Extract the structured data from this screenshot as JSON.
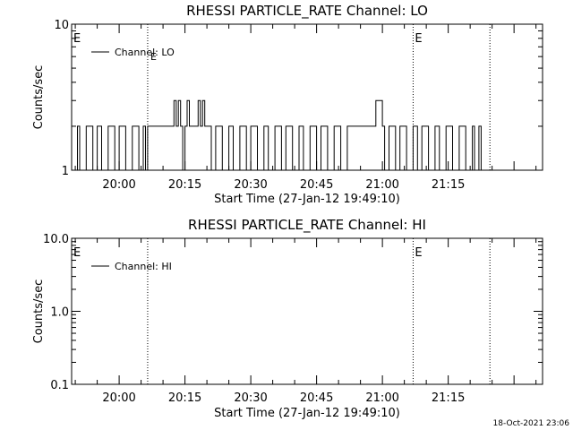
{
  "timestamp": "18-Oct-2021 23:06",
  "chart_data": [
    {
      "type": "line",
      "title": "RHESSI PARTICLE_RATE Channel: LO",
      "xlabel": "Start Time (27-Jan-12 19:49:10)",
      "ylabel": "Counts/sec",
      "yscale": "log",
      "ylim": [
        1,
        10
      ],
      "ytick_labels": [
        "1",
        "10"
      ],
      "xlim": [
        "19:49:10",
        "21:36:30"
      ],
      "xtick_labels": [
        "20:00",
        "20:15",
        "20:30",
        "20:45",
        "21:00",
        "21:15"
      ],
      "event_markers": [
        {
          "time": "20:06:30",
          "label": "E"
        },
        {
          "time": "21:07:00",
          "label": ""
        },
        {
          "time": "21:24:30",
          "label": ""
        }
      ],
      "edge_labels": [
        "E",
        "E"
      ],
      "legend": {
        "label": "Channel: LO",
        "placement": "top-left"
      },
      "series": [
        {
          "name": "Channel: LO",
          "step": true,
          "x": [
            "19:49:10",
            "19:50:30",
            "19:51:00",
            "19:52:30",
            "19:54:00",
            "19:55:00",
            "19:56:00",
            "19:57:30",
            "19:59:00",
            "20:00:00",
            "20:01:30",
            "20:03:00",
            "20:04:30",
            "20:05:30",
            "20:06:00",
            "20:06:30",
            "20:12:00",
            "20:12:30",
            "20:13:00",
            "20:13:30",
            "20:14:00",
            "20:14:30",
            "20:15:00",
            "20:15:30",
            "20:16:00",
            "20:17:00",
            "20:18:00",
            "20:18:30",
            "20:19:00",
            "20:19:30",
            "20:21:00",
            "20:22:00",
            "20:23:30",
            "20:25:00",
            "20:26:00",
            "20:27:30",
            "20:29:00",
            "20:30:00",
            "20:31:30",
            "20:33:00",
            "20:34:00",
            "20:35:30",
            "20:37:00",
            "20:38:00",
            "20:39:30",
            "20:41:00",
            "20:42:00",
            "20:43:30",
            "20:45:00",
            "20:46:00",
            "20:47:30",
            "20:49:00",
            "20:50:30",
            "20:52:00",
            "20:57:00",
            "20:58:30",
            "21:00:00",
            "21:00:30",
            "21:01:30",
            "21:03:00",
            "21:04:00",
            "21:05:30",
            "21:07:00",
            "21:08:00",
            "21:09:00",
            "21:10:30",
            "21:12:00",
            "21:13:00",
            "21:14:30",
            "21:16:00",
            "21:17:30",
            "21:19:00",
            "21:20:30",
            "21:21:00",
            "21:22:00",
            "21:22:30",
            "21:23:00"
          ],
          "y": [
            1,
            2,
            1,
            2,
            1,
            2,
            1,
            2,
            1,
            2,
            1,
            2,
            1,
            2,
            1,
            2,
            2,
            3,
            2,
            3,
            2,
            1,
            2,
            3,
            2,
            2,
            3,
            2,
            3,
            2,
            1,
            2,
            1,
            2,
            1,
            2,
            1,
            2,
            1,
            2,
            1,
            2,
            1,
            2,
            1,
            2,
            1,
            2,
            1,
            2,
            1,
            2,
            1,
            2,
            2,
            3,
            2,
            1,
            2,
            1,
            2,
            1,
            2,
            1,
            2,
            1,
            2,
            1,
            2,
            1,
            2,
            1,
            2,
            1,
            2,
            1,
            1
          ]
        }
      ]
    },
    {
      "type": "line",
      "title": "RHESSI PARTICLE_RATE Channel: HI",
      "xlabel": "Start Time (27-Jan-12 19:49:10)",
      "ylabel": "Counts/sec",
      "yscale": "log",
      "ylim": [
        0.1,
        10
      ],
      "ytick_labels": [
        "0.1",
        "1.0",
        "10.0"
      ],
      "xlim": [
        "19:49:10",
        "21:36:30"
      ],
      "xtick_labels": [
        "20:00",
        "20:15",
        "20:30",
        "20:45",
        "21:00",
        "21:15"
      ],
      "event_markers": [
        {
          "time": "20:06:30",
          "label": ""
        },
        {
          "time": "21:07:00",
          "label": ""
        },
        {
          "time": "21:24:30",
          "label": ""
        }
      ],
      "edge_labels": [
        "E",
        "E"
      ],
      "legend": {
        "label": "Channel: HI",
        "placement": "top-left"
      },
      "series": [
        {
          "name": "Channel: HI",
          "step": true,
          "x": [],
          "y": []
        }
      ]
    }
  ]
}
